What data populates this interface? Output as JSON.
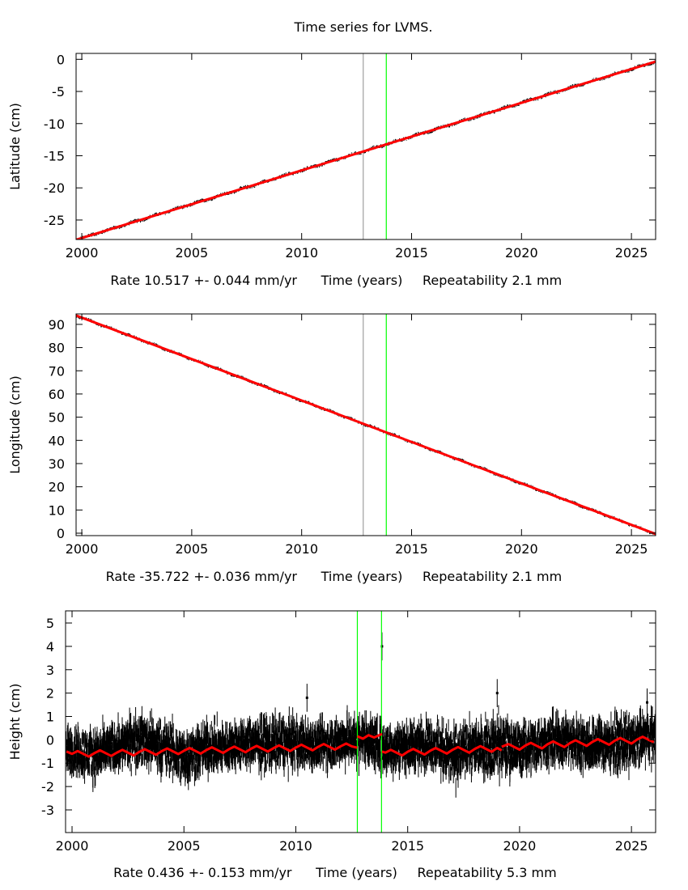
{
  "chart_data": {
    "title": "Time series for LVMS.",
    "panels": [
      {
        "type": "scatter",
        "ylabel": "Latitude (cm)",
        "xlabel": "Time (years)",
        "rate": "Rate 10.517 +- 0.044 mm/yr",
        "repeatability": "Repeatability 2.1 mm",
        "xlim": [
          1999.74,
          2026.1
        ],
        "ylim": [
          -28.03,
          0.92
        ],
        "xticks": [
          2000,
          2005,
          2010,
          2015,
          2020,
          2025
        ],
        "yticks": [
          0,
          -5,
          -10,
          -15,
          -20,
          -25
        ],
        "vlines": [
          {
            "x": 2012.8,
            "color": "#a0a0a0"
          },
          {
            "x": 2013.85,
            "color": "#00ff00"
          }
        ],
        "data_scatter": 0.25,
        "fit": [
          [
            1999.74,
            -28.07
          ],
          [
            2000,
            -27.8
          ],
          [
            2001,
            -26.75
          ],
          [
            2002,
            -25.7
          ],
          [
            2003,
            -24.64
          ],
          [
            2004,
            -23.59
          ],
          [
            2005,
            -22.54
          ],
          [
            2006,
            -21.49
          ],
          [
            2007,
            -20.44
          ],
          [
            2008,
            -19.39
          ],
          [
            2009,
            -18.33
          ],
          [
            2010,
            -17.28
          ],
          [
            2011,
            -16.23
          ],
          [
            2012,
            -15.18
          ],
          [
            2013,
            -14.13
          ],
          [
            2014,
            -13.07
          ],
          [
            2015,
            -12.02
          ],
          [
            2016,
            -10.97
          ],
          [
            2017,
            -9.92
          ],
          [
            2018,
            -8.87
          ],
          [
            2019,
            -7.82
          ],
          [
            2020,
            -6.77
          ],
          [
            2021,
            -5.71
          ],
          [
            2022,
            -4.66
          ],
          [
            2023,
            -3.61
          ],
          [
            2024,
            -2.56
          ],
          [
            2025,
            -1.51
          ],
          [
            2026,
            -0.46
          ],
          [
            2026.1,
            -0.35
          ]
        ]
      },
      {
        "type": "scatter",
        "ylabel": "Longitude (cm)",
        "xlabel": "Time (years)",
        "rate": "Rate -35.722 +- 0.036 mm/yr",
        "repeatability": "Repeatability 2.1 mm",
        "xlim": [
          1999.74,
          2026.1
        ],
        "ylim": [
          -1.05,
          94.5
        ],
        "xticks": [
          2000,
          2005,
          2010,
          2015,
          2020,
          2025
        ],
        "yticks": [
          0,
          10,
          20,
          30,
          40,
          50,
          60,
          70,
          80,
          90
        ],
        "vlines": [
          {
            "x": 2012.8,
            "color": "#a0a0a0"
          },
          {
            "x": 2013.85,
            "color": "#00ff00"
          }
        ],
        "data_scatter": 0.6,
        "fit": [
          [
            1999.74,
            93.83
          ],
          [
            2000,
            92.9
          ],
          [
            2001,
            89.33
          ],
          [
            2002,
            85.76
          ],
          [
            2003,
            82.18
          ],
          [
            2004,
            78.61
          ],
          [
            2005,
            75.04
          ],
          [
            2006,
            71.47
          ],
          [
            2007,
            67.89
          ],
          [
            2008,
            64.32
          ],
          [
            2009,
            60.75
          ],
          [
            2010,
            57.18
          ],
          [
            2011,
            53.61
          ],
          [
            2012,
            50.03
          ],
          [
            2013,
            46.46
          ],
          [
            2014,
            42.89
          ],
          [
            2015,
            39.32
          ],
          [
            2016,
            35.74
          ],
          [
            2017,
            32.17
          ],
          [
            2018,
            28.6
          ],
          [
            2019,
            25.03
          ],
          [
            2020,
            21.46
          ],
          [
            2021,
            17.88
          ],
          [
            2022,
            14.31
          ],
          [
            2023,
            10.74
          ],
          [
            2024,
            7.17
          ],
          [
            2025,
            3.59
          ],
          [
            2026,
            0.02
          ],
          [
            2026.1,
            -0.34
          ]
        ]
      },
      {
        "type": "scatter",
        "ylabel": "Height (cm)",
        "xlabel": "Time (years)",
        "rate": "Rate 0.436 +- 0.153 mm/yr",
        "repeatability": "Repeatability 5.3 mm",
        "xlim": [
          1999.71,
          2026.08
        ],
        "ylim": [
          -3.97,
          5.52
        ],
        "xticks": [
          2000,
          2005,
          2010,
          2015,
          2020,
          2025
        ],
        "yticks": [
          5,
          4,
          3,
          2,
          1,
          0,
          -1,
          -2,
          -3
        ],
        "vlines": [
          {
            "x": 2012.75,
            "color": "#00ff00"
          },
          {
            "x": 2013.83,
            "color": "#00ff00"
          }
        ],
        "data_envelope": [
          [
            2000,
            -1.6,
            0.6
          ],
          [
            2001,
            -1.9,
            0.6
          ],
          [
            2002,
            -1.4,
            0.8
          ],
          [
            2003,
            -1.2,
            1.3
          ],
          [
            2004,
            -1.5,
            1.0
          ],
          [
            2005,
            -2.1,
            0.6
          ],
          [
            2006,
            -1.6,
            0.9
          ],
          [
            2007,
            -1.4,
            0.8
          ],
          [
            2008,
            -1.3,
            1.0
          ],
          [
            2009,
            -1.5,
            1.2
          ],
          [
            2010,
            -1.3,
            1.0
          ],
          [
            2011,
            -1.4,
            0.9
          ],
          [
            2012,
            -1.2,
            1.1
          ],
          [
            2013,
            -1.1,
            1.3
          ],
          [
            2014,
            -1.6,
            0.8
          ],
          [
            2015,
            -1.4,
            0.9
          ],
          [
            2016,
            -1.3,
            1.0
          ],
          [
            2017,
            -2.1,
            0.7
          ],
          [
            2018,
            -1.5,
            0.9
          ],
          [
            2019,
            -1.8,
            1.3
          ],
          [
            2020,
            -1.6,
            0.8
          ],
          [
            2021,
            -1.3,
            1.1
          ],
          [
            2022,
            -1.2,
            1.2
          ],
          [
            2023,
            -1.5,
            1.1
          ],
          [
            2024,
            -1.4,
            1.1
          ],
          [
            2025,
            -1.5,
            1.2
          ],
          [
            2026,
            -1.0,
            1.4
          ]
        ],
        "outliers": [
          [
            2010.5,
            1.8
          ],
          [
            2013.85,
            4.0
          ],
          [
            2019.0,
            2.0
          ],
          [
            2025.7,
            1.6
          ]
        ],
        "fit_segments": [
          [
            [
              1999.75,
              -0.5
            ],
            [
              2000,
              -0.6
            ],
            [
              2000.25,
              -0.48
            ],
            [
              2000.5,
              -0.6
            ],
            [
              2000.75,
              -0.72
            ],
            [
              2001,
              -0.57
            ],
            [
              2001.25,
              -0.45
            ],
            [
              2001.5,
              -0.57
            ],
            [
              2001.75,
              -0.69
            ],
            [
              2002,
              -0.55
            ],
            [
              2002.25,
              -0.43
            ],
            [
              2002.5,
              -0.55
            ],
            [
              2002.75,
              -0.67
            ],
            [
              2003,
              -0.52
            ],
            [
              2003.25,
              -0.4
            ],
            [
              2003.5,
              -0.52
            ],
            [
              2003.75,
              -0.64
            ],
            [
              2004,
              -0.49
            ],
            [
              2004.25,
              -0.37
            ],
            [
              2004.5,
              -0.49
            ],
            [
              2004.75,
              -0.61
            ],
            [
              2005,
              -0.47
            ],
            [
              2005.25,
              -0.35
            ],
            [
              2005.5,
              -0.47
            ],
            [
              2005.75,
              -0.59
            ],
            [
              2006,
              -0.44
            ],
            [
              2006.25,
              -0.32
            ],
            [
              2006.5,
              -0.44
            ],
            [
              2006.75,
              -0.56
            ],
            [
              2007,
              -0.41
            ],
            [
              2007.25,
              -0.29
            ],
            [
              2007.5,
              -0.41
            ],
            [
              2007.75,
              -0.53
            ],
            [
              2008,
              -0.38
            ],
            [
              2008.25,
              -0.26
            ],
            [
              2008.5,
              -0.38
            ],
            [
              2008.75,
              -0.5
            ],
            [
              2009,
              -0.36
            ],
            [
              2009.25,
              -0.24
            ],
            [
              2009.5,
              -0.36
            ],
            [
              2009.75,
              -0.48
            ],
            [
              2010,
              -0.33
            ],
            [
              2010.25,
              -0.21
            ],
            [
              2010.5,
              -0.33
            ],
            [
              2010.75,
              -0.45
            ],
            [
              2011,
              -0.3
            ],
            [
              2011.25,
              -0.18
            ],
            [
              2011.5,
              -0.3
            ],
            [
              2011.75,
              -0.42
            ],
            [
              2012,
              -0.28
            ],
            [
              2012.25,
              -0.16
            ],
            [
              2012.5,
              -0.28
            ],
            [
              2012.75,
              -0.34
            ]
          ],
          [
            [
              2012.75,
              0.15
            ],
            [
              2013,
              0.05
            ],
            [
              2013.25,
              0.2
            ],
            [
              2013.5,
              0.1
            ],
            [
              2013.85,
              0.25
            ]
          ],
          [
            [
              2013.85,
              -0.5
            ],
            [
              2014,
              -0.55
            ],
            [
              2014.25,
              -0.43
            ],
            [
              2014.5,
              -0.55
            ],
            [
              2014.75,
              -0.67
            ],
            [
              2015,
              -0.51
            ],
            [
              2015.25,
              -0.39
            ],
            [
              2015.5,
              -0.51
            ],
            [
              2015.75,
              -0.63
            ],
            [
              2016,
              -0.47
            ],
            [
              2016.25,
              -0.35
            ],
            [
              2016.5,
              -0.47
            ],
            [
              2016.75,
              -0.59
            ],
            [
              2017,
              -0.43
            ],
            [
              2017.25,
              -0.31
            ],
            [
              2017.5,
              -0.43
            ],
            [
              2017.75,
              -0.55
            ],
            [
              2018,
              -0.39
            ],
            [
              2018.25,
              -0.27
            ],
            [
              2018.5,
              -0.39
            ],
            [
              2018.75,
              -0.51
            ],
            [
              2019,
              -0.35
            ],
            [
              2019.2,
              -0.45
            ]
          ],
          [
            [
              2019.2,
              -0.3
            ],
            [
              2019.5,
              -0.18
            ],
            [
              2019.75,
              -0.3
            ],
            [
              2020,
              -0.42
            ],
            [
              2020.25,
              -0.25
            ],
            [
              2020.5,
              -0.13
            ],
            [
              2020.75,
              -0.25
            ],
            [
              2021,
              -0.37
            ],
            [
              2021.25,
              -0.19
            ],
            [
              2021.5,
              -0.07
            ],
            [
              2021.75,
              -0.19
            ],
            [
              2022,
              -0.31
            ],
            [
              2022.25,
              -0.14
            ],
            [
              2022.5,
              -0.02
            ],
            [
              2022.75,
              -0.14
            ],
            [
              2023,
              -0.26
            ],
            [
              2023.25,
              -0.09
            ],
            [
              2023.5,
              0.03
            ],
            [
              2023.75,
              -0.09
            ],
            [
              2024,
              -0.21
            ],
            [
              2024.25,
              -0.04
            ],
            [
              2024.5,
              0.08
            ],
            [
              2024.75,
              -0.04
            ],
            [
              2025,
              -0.16
            ],
            [
              2025.25,
              0.01
            ],
            [
              2025.5,
              0.13
            ],
            [
              2025.75,
              0.01
            ],
            [
              2026,
              -0.1
            ]
          ]
        ]
      }
    ],
    "colors": {
      "data": "#000000",
      "fit": "#ff0000",
      "frame": "#000000"
    },
    "grid": false,
    "legend": "none"
  }
}
